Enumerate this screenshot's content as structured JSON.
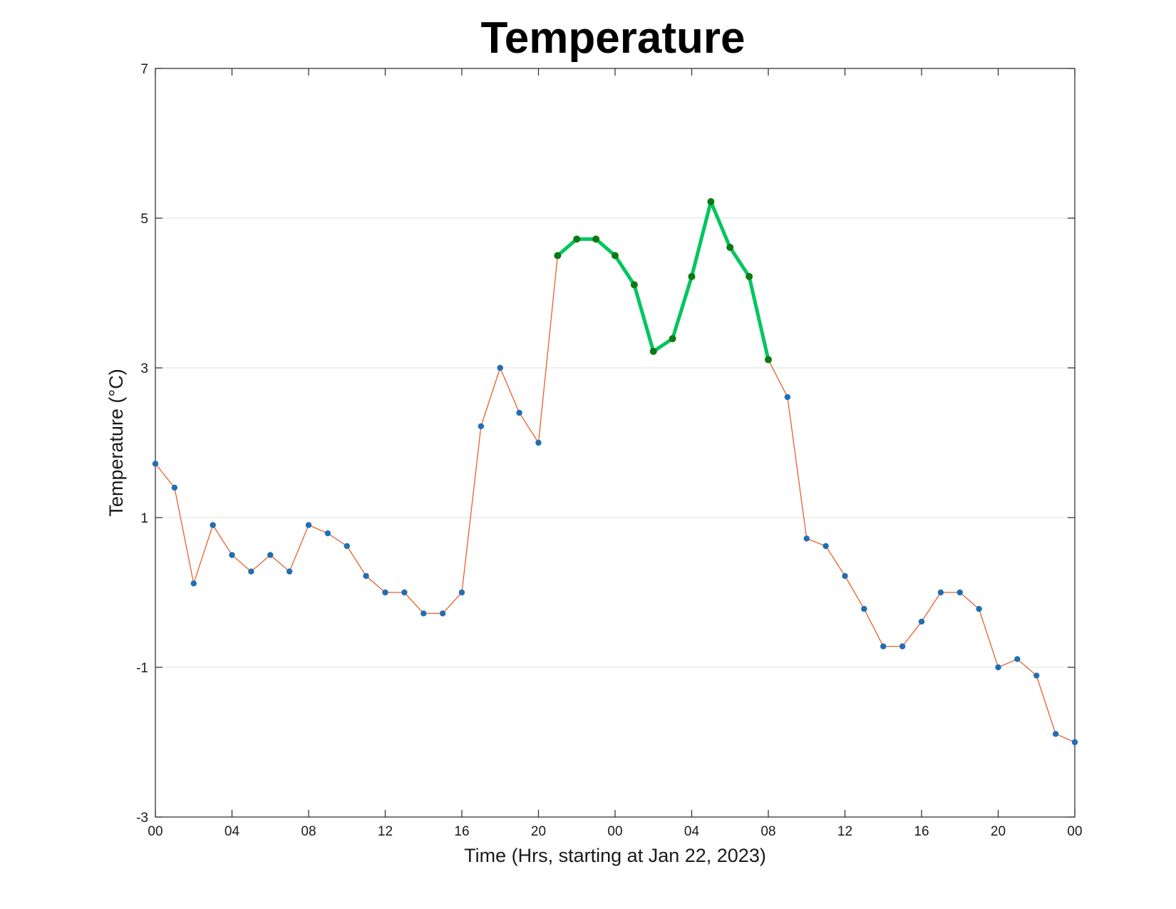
{
  "chart_data": {
    "type": "line",
    "title": "Temperature",
    "xlabel": "Time (Hrs, starting at Jan 22, 2023)",
    "ylabel": "Temperature (°C)",
    "x_start": "2023-01-22 00:00",
    "x_step_hours": 1,
    "x_tick_labels": [
      "00",
      "04",
      "08",
      "12",
      "16",
      "20",
      "00",
      "04",
      "08",
      "12",
      "16",
      "20",
      "00"
    ],
    "ylim": [
      -3,
      7
    ],
    "y_ticks": [
      -3,
      -1,
      1,
      3,
      5,
      7
    ],
    "grid": "horizontal",
    "series": [
      {
        "color": "#e8602c",
        "marker_color": "#1f6fb4",
        "values": [
          1.72,
          1.4,
          0.12,
          0.9,
          0.5,
          0.28,
          0.5,
          0.28,
          0.9,
          0.79,
          0.62,
          0.22,
          0.0,
          0.0,
          -0.28,
          -0.28,
          0.0,
          2.22,
          3.0,
          2.4,
          2.0,
          4.5,
          4.72,
          4.72,
          4.5,
          4.11,
          3.22,
          3.39,
          4.22,
          5.22,
          4.61,
          4.22,
          3.11,
          2.61,
          0.72,
          0.62,
          0.22,
          -0.22,
          -0.72,
          -0.72,
          -0.39,
          0.0,
          0.0,
          -0.22,
          -1.0,
          -0.89,
          -1.11,
          -1.89,
          -2.0
        ]
      },
      {
        "color": "#00c65e",
        "marker_color": "#0c7a12",
        "x_start_index": 21,
        "values": [
          4.5,
          4.72,
          4.72,
          4.5,
          4.11,
          3.22,
          3.39,
          4.22,
          5.22,
          4.61,
          4.22,
          3.11
        ]
      }
    ]
  }
}
